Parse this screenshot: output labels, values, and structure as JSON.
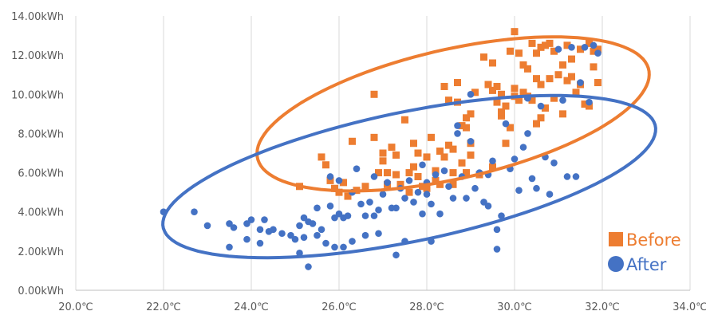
{
  "chart_data": {
    "type": "scatter",
    "title": "",
    "xlabel": "",
    "ylabel": "",
    "xlim": [
      20,
      34
    ],
    "ylim": [
      0,
      14
    ],
    "x_ticks": [
      20,
      22,
      24,
      26,
      28,
      30,
      32,
      34
    ],
    "y_ticks": [
      0,
      2,
      4,
      6,
      8,
      10,
      12,
      14
    ],
    "x_tick_labels": [
      "20.0℃",
      "22.0℃",
      "24.0℃",
      "26.0℃",
      "28.0℃",
      "30.0℃",
      "32.0℃",
      "34.0℃"
    ],
    "y_tick_labels": [
      "0.00kWh",
      "2.00kWh",
      "4.00kWh",
      "6.00kWh",
      "8.00kWh",
      "10.00kWh",
      "12.00kWh",
      "14.00kWh"
    ],
    "grid": {
      "vertical": true,
      "horizontal": false
    },
    "legend_position": "bottom-right",
    "series": [
      {
        "name": "Before",
        "marker": "square",
        "color": "#ED7D31",
        "points": [
          [
            25.1,
            5.3
          ],
          [
            25.6,
            6.8
          ],
          [
            25.7,
            6.4
          ],
          [
            25.8,
            5.6
          ],
          [
            25.9,
            5.2
          ],
          [
            26.0,
            5.0
          ],
          [
            26.1,
            5.5
          ],
          [
            26.2,
            4.8
          ],
          [
            26.3,
            7.6
          ],
          [
            26.4,
            5.1
          ],
          [
            26.6,
            5.3
          ],
          [
            26.8,
            10.0
          ],
          [
            26.8,
            7.8
          ],
          [
            26.9,
            6.0
          ],
          [
            27.0,
            6.6
          ],
          [
            27.1,
            5.4
          ],
          [
            27.1,
            6.0
          ],
          [
            27.2,
            7.3
          ],
          [
            27.3,
            6.9
          ],
          [
            27.3,
            5.9
          ],
          [
            27.4,
            5.4
          ],
          [
            27.5,
            8.7
          ],
          [
            27.6,
            6.0
          ],
          [
            27.7,
            6.3
          ],
          [
            27.7,
            7.5
          ],
          [
            27.8,
            5.8
          ],
          [
            27.8,
            7.0
          ],
          [
            27.9,
            5.3
          ],
          [
            28.0,
            6.8
          ],
          [
            28.0,
            5.2
          ],
          [
            28.1,
            7.8
          ],
          [
            28.2,
            5.6
          ],
          [
            28.2,
            6.1
          ],
          [
            28.3,
            7.1
          ],
          [
            28.3,
            5.4
          ],
          [
            28.4,
            10.4
          ],
          [
            28.4,
            6.8
          ],
          [
            28.5,
            9.7
          ],
          [
            28.5,
            7.4
          ],
          [
            28.6,
            6.0
          ],
          [
            28.6,
            7.2
          ],
          [
            28.7,
            10.6
          ],
          [
            28.7,
            9.6
          ],
          [
            28.8,
            8.4
          ],
          [
            28.8,
            6.5
          ],
          [
            28.9,
            8.8
          ],
          [
            28.9,
            8.3
          ],
          [
            29.0,
            6.9
          ],
          [
            29.0,
            7.5
          ],
          [
            29.0,
            9.0
          ],
          [
            29.1,
            10.1
          ],
          [
            29.2,
            5.9
          ],
          [
            29.3,
            11.9
          ],
          [
            29.4,
            10.5
          ],
          [
            29.5,
            11.6
          ],
          [
            29.5,
            6.3
          ],
          [
            29.6,
            9.6
          ],
          [
            29.6,
            10.4
          ],
          [
            29.7,
            8.9
          ],
          [
            29.7,
            10.0
          ],
          [
            29.8,
            9.4
          ],
          [
            29.8,
            7.5
          ],
          [
            29.9,
            12.2
          ],
          [
            29.9,
            8.3
          ],
          [
            30.0,
            10.3
          ],
          [
            30.0,
            13.2
          ],
          [
            30.0,
            9.9
          ],
          [
            30.1,
            12.1
          ],
          [
            30.1,
            9.7
          ],
          [
            30.2,
            10.1
          ],
          [
            30.2,
            11.5
          ],
          [
            30.3,
            9.9
          ],
          [
            30.4,
            12.6
          ],
          [
            30.4,
            9.7
          ],
          [
            30.5,
            10.8
          ],
          [
            30.5,
            12.1
          ],
          [
            30.6,
            10.5
          ],
          [
            30.6,
            12.4
          ],
          [
            30.6,
            8.8
          ],
          [
            30.7,
            12.5
          ],
          [
            30.7,
            9.3
          ],
          [
            30.8,
            12.6
          ],
          [
            30.8,
            10.8
          ],
          [
            30.9,
            9.8
          ],
          [
            31.0,
            11.0
          ],
          [
            31.1,
            9.0
          ],
          [
            31.1,
            11.5
          ],
          [
            31.2,
            10.7
          ],
          [
            31.2,
            12.5
          ],
          [
            31.3,
            10.9
          ],
          [
            31.3,
            11.8
          ],
          [
            31.4,
            10.1
          ],
          [
            31.5,
            12.3
          ],
          [
            31.6,
            9.5
          ],
          [
            31.7,
            12.6
          ],
          [
            31.8,
            12.2
          ],
          [
            31.8,
            11.4
          ],
          [
            31.9,
            10.6
          ],
          [
            31.9,
            12.3
          ],
          [
            31.7,
            9.4
          ],
          [
            30.3,
            11.3
          ],
          [
            29.7,
            9.1
          ],
          [
            28.6,
            5.4
          ],
          [
            27.6,
            5.0
          ],
          [
            30.9,
            12.2
          ],
          [
            27.0,
            7.0
          ],
          [
            28.9,
            6.0
          ],
          [
            30.5,
            8.5
          ],
          [
            29.5,
            10.2
          ],
          [
            31.5,
            10.5
          ]
        ]
      },
      {
        "name": "After",
        "marker": "circle",
        "color": "#4472C4",
        "points": [
          [
            22.0,
            4.0
          ],
          [
            22.7,
            4.0
          ],
          [
            23.0,
            3.3
          ],
          [
            23.5,
            3.4
          ],
          [
            23.5,
            2.2
          ],
          [
            23.6,
            3.2
          ],
          [
            23.9,
            2.6
          ],
          [
            24.0,
            3.6
          ],
          [
            24.2,
            3.1
          ],
          [
            24.2,
            2.4
          ],
          [
            24.3,
            3.6
          ],
          [
            24.4,
            3.0
          ],
          [
            24.5,
            3.1
          ],
          [
            24.7,
            2.9
          ],
          [
            25.0,
            2.6
          ],
          [
            25.1,
            3.3
          ],
          [
            25.1,
            1.9
          ],
          [
            25.2,
            3.7
          ],
          [
            25.2,
            2.7
          ],
          [
            25.3,
            1.2
          ],
          [
            25.3,
            3.5
          ],
          [
            25.4,
            3.4
          ],
          [
            25.5,
            4.2
          ],
          [
            25.5,
            2.8
          ],
          [
            25.6,
            3.1
          ],
          [
            25.7,
            2.4
          ],
          [
            25.8,
            5.8
          ],
          [
            25.8,
            4.3
          ],
          [
            25.9,
            2.2
          ],
          [
            25.9,
            3.7
          ],
          [
            26.0,
            3.9
          ],
          [
            26.1,
            3.7
          ],
          [
            26.1,
            2.2
          ],
          [
            26.2,
            3.8
          ],
          [
            26.3,
            2.5
          ],
          [
            26.3,
            5.0
          ],
          [
            26.4,
            6.2
          ],
          [
            26.5,
            4.4
          ],
          [
            26.6,
            3.8
          ],
          [
            26.6,
            2.8
          ],
          [
            26.7,
            4.5
          ],
          [
            26.8,
            3.8
          ],
          [
            26.8,
            5.8
          ],
          [
            26.9,
            4.1
          ],
          [
            26.9,
            2.9
          ],
          [
            27.0,
            4.9
          ],
          [
            27.1,
            5.5
          ],
          [
            27.2,
            4.2
          ],
          [
            27.3,
            4.2
          ],
          [
            27.3,
            1.8
          ],
          [
            27.4,
            5.2
          ],
          [
            27.5,
            4.7
          ],
          [
            27.6,
            5.6
          ],
          [
            27.7,
            4.5
          ],
          [
            27.8,
            5.0
          ],
          [
            27.9,
            6.4
          ],
          [
            28.0,
            5.5
          ],
          [
            28.0,
            4.9
          ],
          [
            28.1,
            4.4
          ],
          [
            28.2,
            5.9
          ],
          [
            28.3,
            3.9
          ],
          [
            28.4,
            6.1
          ],
          [
            28.5,
            5.3
          ],
          [
            28.6,
            4.7
          ],
          [
            28.7,
            8.0
          ],
          [
            28.8,
            5.8
          ],
          [
            28.9,
            4.7
          ],
          [
            29.0,
            7.6
          ],
          [
            29.1,
            5.2
          ],
          [
            29.2,
            6.0
          ],
          [
            29.3,
            4.5
          ],
          [
            29.4,
            4.3
          ],
          [
            29.5,
            6.6
          ],
          [
            29.6,
            3.1
          ],
          [
            29.7,
            3.8
          ],
          [
            29.8,
            8.5
          ],
          [
            29.9,
            6.2
          ],
          [
            30.0,
            6.7
          ],
          [
            30.1,
            5.1
          ],
          [
            30.2,
            7.3
          ],
          [
            30.3,
            8.0
          ],
          [
            30.4,
            5.7
          ],
          [
            30.5,
            5.2
          ],
          [
            30.6,
            9.4
          ],
          [
            30.7,
            6.8
          ],
          [
            30.8,
            4.9
          ],
          [
            30.9,
            6.5
          ],
          [
            31.0,
            12.3
          ],
          [
            31.1,
            9.7
          ],
          [
            31.2,
            5.8
          ],
          [
            31.3,
            12.4
          ],
          [
            31.4,
            5.8
          ],
          [
            31.5,
            10.6
          ],
          [
            31.6,
            12.4
          ],
          [
            31.7,
            9.6
          ],
          [
            31.8,
            12.5
          ],
          [
            31.9,
            12.1
          ],
          [
            29.6,
            2.1
          ],
          [
            28.1,
            2.5
          ],
          [
            27.5,
            2.5
          ],
          [
            30.3,
            9.8
          ],
          [
            29.0,
            10.0
          ],
          [
            28.7,
            8.4
          ],
          [
            27.9,
            3.9
          ],
          [
            29.4,
            5.9
          ],
          [
            26.0,
            5.6
          ],
          [
            24.9,
            2.8
          ],
          [
            23.9,
            3.4
          ]
        ]
      }
    ],
    "ellipses": [
      {
        "series": "Before",
        "color": "#ED7D31",
        "center": [
          28.6,
          9.0
        ],
        "semi_major": 5.2,
        "semi_minor": 2.9,
        "angle_deg": 38
      },
      {
        "series": "After",
        "color": "#4472C4",
        "center": [
          27.6,
          5.8
        ],
        "semi_major": 6.3,
        "semi_minor": 3.0,
        "angle_deg": 31
      }
    ]
  }
}
